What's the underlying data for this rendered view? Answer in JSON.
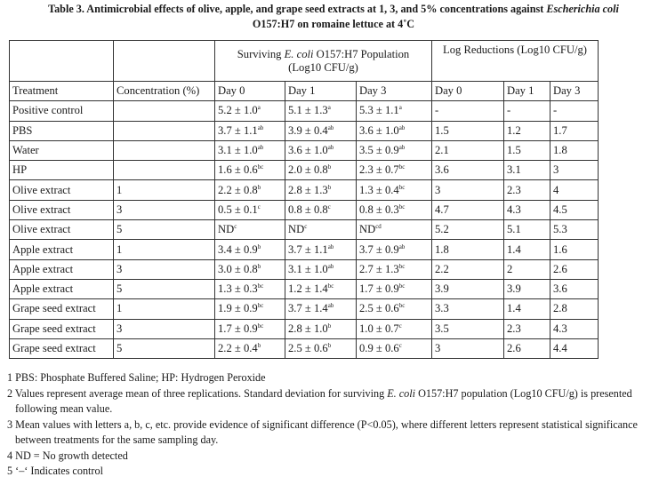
{
  "title": {
    "line1_prefix": "Table 3. Antimicrobial effects of olive, apple, and grape seed extracts at 1, 3, and 5% concentrations against ",
    "line1_italic": "Escherichia coli",
    "line2": "O157:H7 on romaine lettuce at 4˚C"
  },
  "table": {
    "group1": {
      "prefix": "Surviving ",
      "italic": "E. coli",
      "suffix": " O157:H7 Population",
      "line2": "(Log10 CFU/g)"
    },
    "group2": "Log Reductions (Log10 CFU/g)",
    "headers": [
      "Treatment",
      "Concentration (%)",
      "Day 0",
      "Day 1",
      "Day 3",
      "Day 0",
      "Day 1",
      "Day 3"
    ],
    "rows": [
      [
        "Positive control",
        "",
        [
          "5.2 ± 1.0",
          "a"
        ],
        [
          "5.1 ± 1.3",
          "a"
        ],
        [
          "5.3 ± 1.1",
          "a"
        ],
        "-",
        "-",
        "-"
      ],
      [
        "PBS",
        "",
        [
          "3.7 ± 1.1",
          "ab"
        ],
        [
          "3.9 ± 0.4",
          "ab"
        ],
        [
          "3.6 ± 1.0",
          "ab"
        ],
        "1.5",
        "1.2",
        "1.7"
      ],
      [
        "Water",
        "",
        [
          "3.1 ± 1.0",
          "ab"
        ],
        [
          "3.6 ± 1.0",
          "ab"
        ],
        [
          "3.5 ± 0.9",
          "ab"
        ],
        "2.1",
        "1.5",
        "1.8"
      ],
      [
        "HP",
        "",
        [
          "1.6 ± 0.6",
          "bc"
        ],
        [
          "2.0 ± 0.8",
          "b"
        ],
        [
          "2.3 ± 0.7",
          "bc"
        ],
        "3.6",
        "3.1",
        "3"
      ],
      [
        "Olive extract",
        "1",
        [
          "2.2 ± 0.8",
          "b"
        ],
        [
          "2.8 ± 1.3",
          "b"
        ],
        [
          "1.3 ± 0.4",
          "bc"
        ],
        "3",
        "2.3",
        "4"
      ],
      [
        "Olive extract",
        "3",
        [
          "0.5 ± 0.1",
          "c"
        ],
        [
          "0.8 ± 0.8",
          "c"
        ],
        [
          "0.8 ± 0.3",
          "bc"
        ],
        "4.7",
        "4.3",
        "4.5"
      ],
      [
        "Olive extract",
        "5",
        [
          "ND",
          "c"
        ],
        [
          "ND",
          "c"
        ],
        [
          "ND",
          "cd"
        ],
        "5.2",
        "5.1",
        "5.3"
      ],
      [
        "Apple extract",
        "1",
        [
          "3.4 ± 0.9",
          "b"
        ],
        [
          "3.7 ± 1.1",
          "ab"
        ],
        [
          "3.7 ± 0.9",
          "ab"
        ],
        "1.8",
        "1.4",
        "1.6"
      ],
      [
        "Apple extract",
        "3",
        [
          "3.0 ± 0.8",
          "b"
        ],
        [
          "3.1 ± 1.0",
          "ab"
        ],
        [
          "2.7 ± 1.3",
          "bc"
        ],
        "2.2",
        "2",
        "2.6"
      ],
      [
        "Apple extract",
        "5",
        [
          "1.3 ± 0.3",
          "bc"
        ],
        [
          "1.2 ± 1.4",
          "bc"
        ],
        [
          "1.7 ± 0.9",
          "bc"
        ],
        "3.9",
        "3.9",
        "3.6"
      ],
      [
        "Grape seed extract",
        "1",
        [
          "1.9 ± 0.9",
          "bc"
        ],
        [
          "3.7 ± 1.4",
          "ab"
        ],
        [
          "2.5 ± 0.6",
          "bc"
        ],
        "3.3",
        "1.4",
        "2.8"
      ],
      [
        "Grape seed extract",
        "3",
        [
          "1.7 ± 0.9",
          "bc"
        ],
        [
          "2.8 ± 1.0",
          "b"
        ],
        [
          "1.0 ± 0.7",
          "c"
        ],
        "3.5",
        "2.3",
        "4.3"
      ],
      [
        "Grape seed extract",
        "5",
        [
          "2.2 ± 0.4",
          "b"
        ],
        [
          "2.5 ± 0.6",
          "b"
        ],
        [
          "0.9 ± 0.6",
          "c"
        ],
        "3",
        "2.6",
        "4.4"
      ]
    ]
  },
  "notes": {
    "n1": "1 PBS: Phosphate Buffered Saline; HP: Hydrogen Peroxide",
    "n2_prefix": "2 Values represent average mean of three replications. Standard deviation for surviving ",
    "n2_italic": "E. coli",
    "n2_suffix": " O157:H7 population (Log10 CFU/g) is presented following mean value.",
    "n3": "3 Mean values with letters a, b, c, etc. provide evidence of significant difference (P<0.05), where different letters represent statistical significance between treatments for the same sampling day.",
    "n4": "4 ND = No growth detected",
    "n5": "5 ‘–‘ Indicates control"
  }
}
